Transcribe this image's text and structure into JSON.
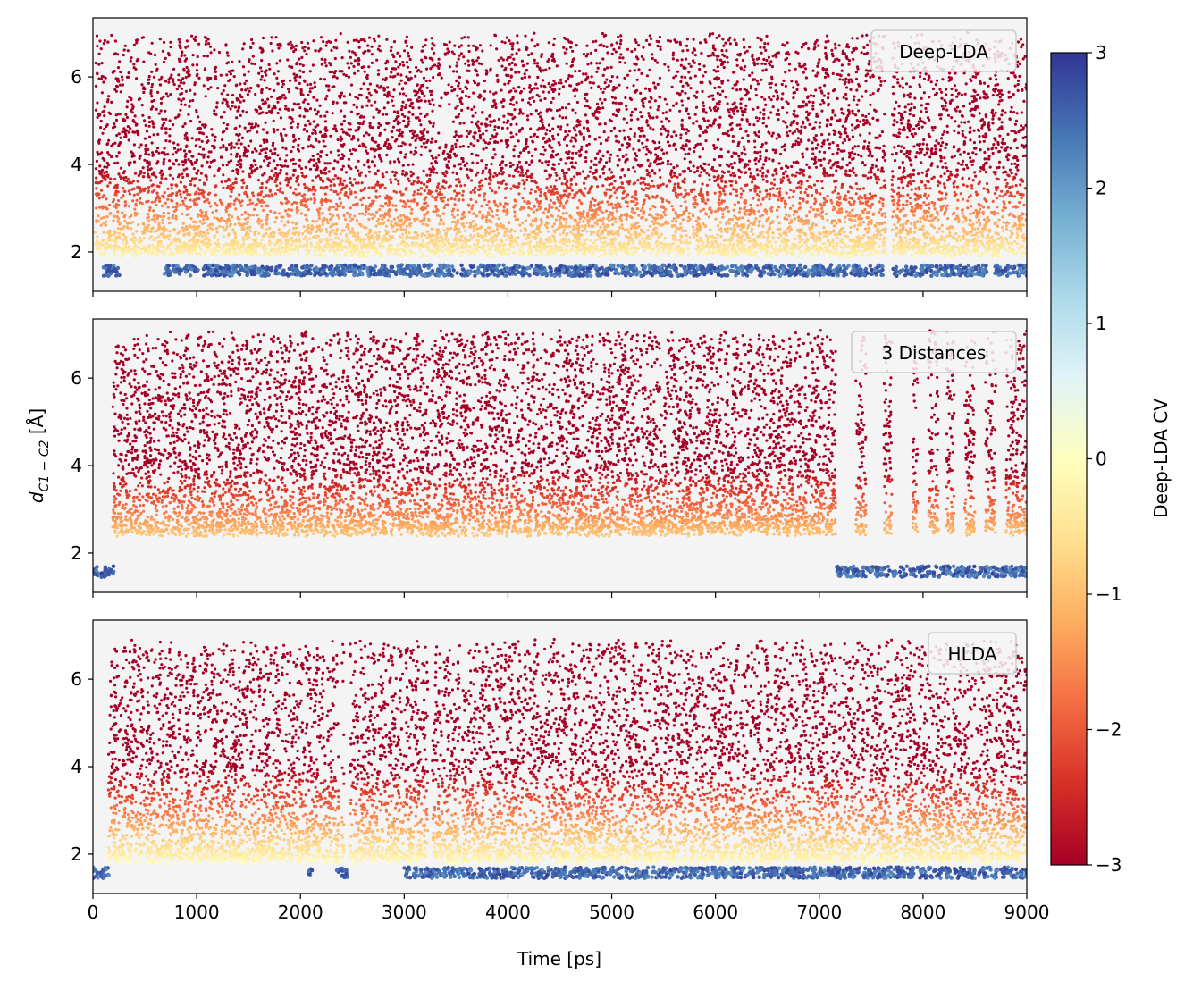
{
  "chart_data": {
    "type": "scatter",
    "x_ticks": [
      "0",
      "1000",
      "2000",
      "3000",
      "4000",
      "5000",
      "6000",
      "7000",
      "8000",
      "9000"
    ],
    "y_ticks": [
      "2",
      "4",
      "6"
    ],
    "xlabel": "Time [ps]",
    "ylabel": "d",
    "ylabel_sub": "C1 − C2",
    "ylabel_unit": " [Å]",
    "xlim": [
      0,
      9000
    ],
    "ylim": [
      1.1,
      7.35
    ],
    "panels": [
      {
        "name": "Deep-LDA",
        "background": "#f4f4f4",
        "segments": [
          [
            20,
            180
          ],
          [
            190,
            710
          ],
          [
            720,
            2000
          ],
          [
            2005,
            3800
          ],
          [
            3810,
            5770
          ],
          [
            5780,
            7640
          ],
          [
            7700,
            8650
          ],
          [
            8660,
            9000
          ]
        ],
        "low_state_ranges": [
          [
            100,
            260
          ],
          [
            680,
            7620
          ],
          [
            7700,
            8620
          ],
          [
            8680,
            9000
          ]
        ],
        "high_state_start": 200,
        "upper_envelope": 6.9,
        "lower_envelope": 2.0
      },
      {
        "name": "3 Distances",
        "background": "#f4f4f4",
        "segments": [
          [
            190,
            7160
          ],
          [
            7350,
            7450
          ],
          [
            7620,
            7700
          ],
          [
            7900,
            7950
          ],
          [
            8050,
            8150
          ],
          [
            8220,
            8300
          ],
          [
            8400,
            8500
          ],
          [
            8600,
            8700
          ],
          [
            8800,
            9000
          ]
        ],
        "low_state_ranges": [
          [
            0,
            200
          ],
          [
            7160,
            9000
          ]
        ],
        "high_state_start": 190,
        "upper_envelope": 7.0,
        "lower_envelope": 2.5
      },
      {
        "name": "HLDA",
        "background": "#f4f4f4",
        "segments": [
          [
            150,
            2370
          ],
          [
            2400,
            2420
          ],
          [
            2480,
            3230
          ],
          [
            3270,
            3540
          ],
          [
            3560,
            9000
          ]
        ],
        "low_state_ranges": [
          [
            0,
            160
          ],
          [
            2080,
            2120
          ],
          [
            2350,
            2450
          ],
          [
            3000,
            9000
          ]
        ],
        "high_state_start": 150,
        "upper_envelope": 6.8,
        "lower_envelope": 1.9
      }
    ],
    "colorbar": {
      "label": "Deep-LDA CV",
      "min": -3,
      "max": 3,
      "ticks": [
        "3",
        "2",
        "1",
        "0",
        "−1",
        "−2",
        "−3"
      ],
      "tick_values": [
        3,
        2,
        1,
        0,
        -1,
        -2,
        -3
      ],
      "colormap": "RdYlBu",
      "stops": [
        "#a50026",
        "#d73027",
        "#f46d43",
        "#fdae61",
        "#fee090",
        "#ffffbf",
        "#e0f3f8",
        "#abd9e9",
        "#74add1",
        "#4575b4",
        "#313695"
      ]
    }
  }
}
